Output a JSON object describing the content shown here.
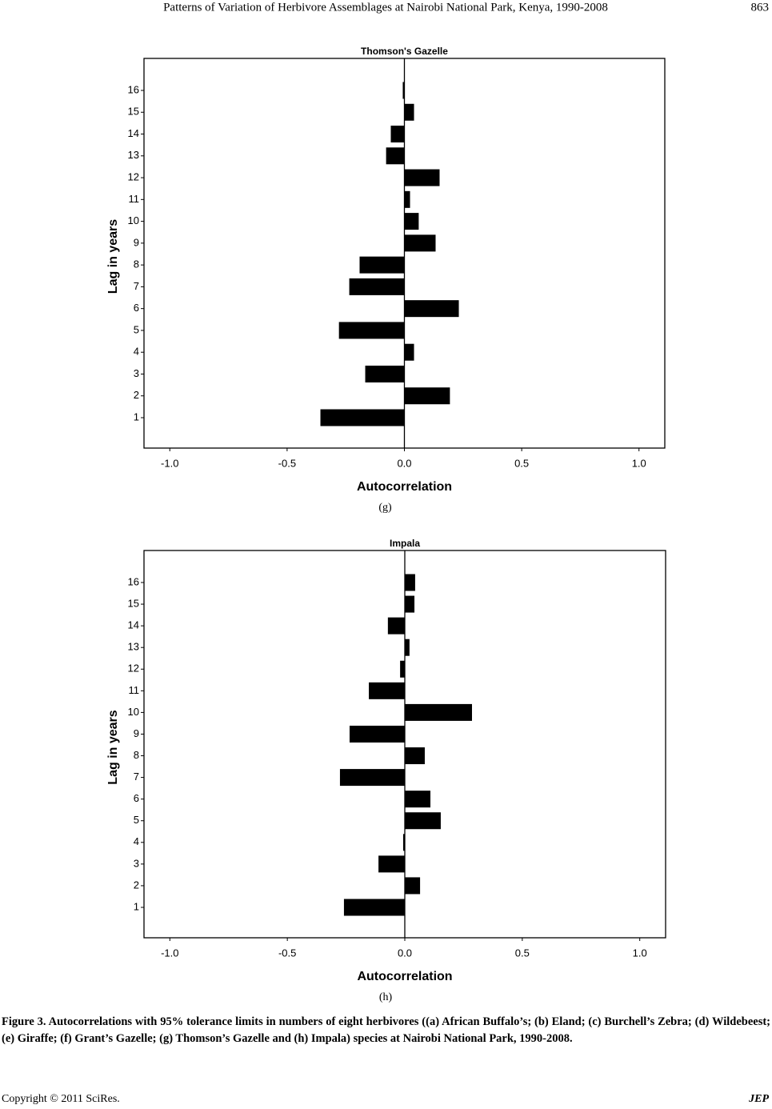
{
  "header": {
    "title": "Patterns of Variation of Herbivore Assemblages at Nairobi National Park, Kenya, 1990-2008",
    "page": "863"
  },
  "chart_data": [
    {
      "type": "barh",
      "title": "Thomson's Gazelle",
      "x_label": "Autocorrelation",
      "y_label": "Lag in years",
      "caption": "(g)",
      "categories": [
        "1",
        "2",
        "3",
        "4",
        "5",
        "6",
        "7",
        "8",
        "9",
        "10",
        "11",
        "12",
        "13",
        "14",
        "15",
        "16"
      ],
      "values": [
        -0.358,
        0.194,
        -0.167,
        0.041,
        -0.279,
        0.232,
        -0.235,
        -0.191,
        0.133,
        0.061,
        0.024,
        0.15,
        -0.078,
        -0.058,
        0.041,
        -0.007
      ],
      "color": "#000000",
      "xlim": [
        -1.11,
        1.11
      ],
      "xticks": [
        {
          "value": -1,
          "label": "-1.0"
        },
        -0.5,
        {
          "value": 0,
          "label": "0.0"
        },
        0.5,
        {
          "value": 1,
          "label": "1.0"
        }
      ]
    },
    {
      "type": "barh",
      "title": "Impala",
      "x_label": "Autocorrelation",
      "y_label": "Lag in years",
      "caption": "(h)",
      "categories": [
        "1",
        "2",
        "3",
        "4",
        "5",
        "6",
        "7",
        "8",
        "9",
        "10",
        "11",
        "12",
        "13",
        "14",
        "15",
        "16"
      ],
      "values": [
        -0.259,
        0.065,
        -0.112,
        -0.007,
        0.153,
        0.109,
        -0.276,
        0.085,
        -0.235,
        0.286,
        -0.153,
        -0.02,
        0.02,
        -0.072,
        0.041,
        0.044
      ],
      "color": "#000000",
      "xlim": [
        -1.11,
        1.11
      ],
      "xticks": [
        {
          "value": -1,
          "label": "-1.0"
        },
        -0.5,
        {
          "value": 0,
          "label": "0.0"
        },
        0.5,
        {
          "value": 1,
          "label": "1.0"
        }
      ]
    }
  ],
  "figure_caption": "Figure 3. Autocorrelations with 95% tolerance limits in numbers of eight herbivores ((a) African Buffalo’s; (b) Eland; (c) Burchell’s Zebra; (d) Wildebeest; (e) Giraffe; (f) Grant’s Gazelle; (g) Thomson’s Gazelle and (h) Impala) species at Nairobi National Park, 1990-2008.",
  "footer": {
    "copyright": "Copyright © 2011 SciRes.",
    "journal": "JEP"
  }
}
